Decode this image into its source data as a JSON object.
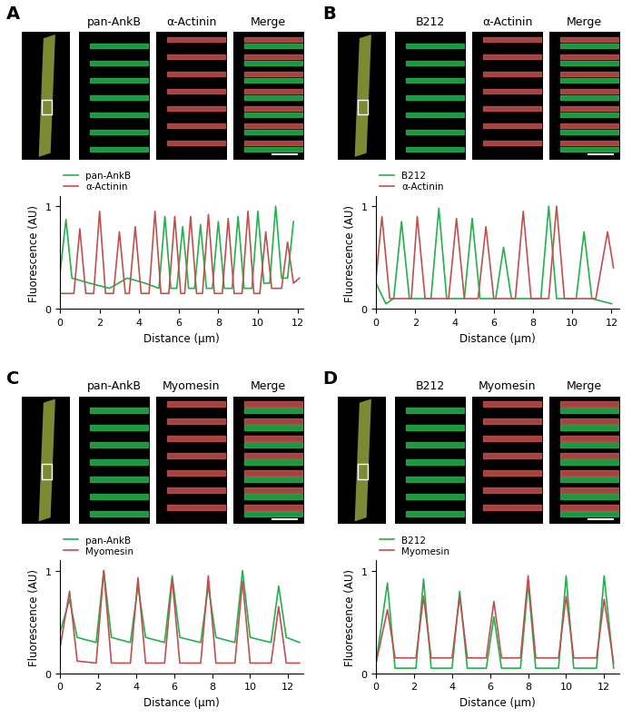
{
  "chart_data": [
    {
      "type": "line",
      "panel": "A",
      "image_labels": [
        "pan-AnkB",
        "α-Actinin",
        "Merge"
      ],
      "x_label": "Distance (μm)",
      "y_label": "Fluorescence (AU)",
      "xlim": [
        0,
        12.3
      ],
      "ylim": [
        0,
        1.1
      ],
      "xticks": [
        0,
        2,
        4,
        6,
        8,
        10,
        12
      ],
      "yticks": [
        0,
        1
      ],
      "legend": "upper left",
      "series": [
        {
          "name": "pan-AnkB",
          "color": "#22b14c",
          "x": [
            0,
            0.3,
            0.6,
            1.5,
            2.5,
            3.4,
            4.3,
            5.0,
            5.3,
            5.6,
            5.9,
            6.2,
            6.5,
            6.8,
            7.1,
            7.4,
            7.7,
            8.0,
            8.3,
            8.7,
            9.0,
            9.3,
            9.7,
            10.0,
            10.3,
            10.6,
            10.9,
            11.2,
            11.5,
            11.8
          ],
          "values": [
            0.35,
            0.87,
            0.3,
            0.25,
            0.2,
            0.3,
            0.25,
            0.2,
            0.9,
            0.2,
            0.2,
            0.8,
            0.2,
            0.2,
            0.82,
            0.2,
            0.2,
            0.85,
            0.2,
            0.2,
            0.9,
            0.2,
            0.2,
            0.95,
            0.25,
            0.25,
            1.0,
            0.3,
            0.3,
            0.85
          ]
        },
        {
          "name": "α-Actinin",
          "color": "#c0504d",
          "x": [
            0,
            0.7,
            1.0,
            1.3,
            1.7,
            2.0,
            2.3,
            2.7,
            3.0,
            3.3,
            3.5,
            3.8,
            4.1,
            4.5,
            4.8,
            5.1,
            5.5,
            5.8,
            6.1,
            6.3,
            6.6,
            6.9,
            7.2,
            7.5,
            7.8,
            8.2,
            8.5,
            8.8,
            9.2,
            9.5,
            9.8,
            10.1,
            10.4,
            10.7,
            11.2,
            11.5,
            11.8,
            12.1
          ],
          "values": [
            0.15,
            0.15,
            0.78,
            0.15,
            0.15,
            0.95,
            0.15,
            0.15,
            0.75,
            0.15,
            0.15,
            0.8,
            0.15,
            0.15,
            0.95,
            0.15,
            0.15,
            0.9,
            0.15,
            0.15,
            0.9,
            0.15,
            0.15,
            0.92,
            0.15,
            0.15,
            0.88,
            0.15,
            0.15,
            0.95,
            0.15,
            0.15,
            0.75,
            0.2,
            0.2,
            0.65,
            0.25,
            0.3
          ]
        }
      ]
    },
    {
      "type": "line",
      "panel": "B",
      "image_labels": [
        "B212",
        "α-Actinin",
        "Merge"
      ],
      "x_label": "Distance (μm)",
      "y_label": "Fluorescence (AU)",
      "xlim": [
        0,
        12.4
      ],
      "ylim": [
        0,
        1.1
      ],
      "xticks": [
        0,
        2,
        4,
        6,
        8,
        10,
        12
      ],
      "yticks": [
        0,
        1
      ],
      "legend": "upper left",
      "series": [
        {
          "name": "B212",
          "color": "#22b14c",
          "x": [
            0,
            0.5,
            0.9,
            1.3,
            1.7,
            2.8,
            3.2,
            3.6,
            4.5,
            4.9,
            5.3,
            6.1,
            6.5,
            6.9,
            8.4,
            8.8,
            9.2,
            10.2,
            10.6,
            11.0,
            12.0
          ],
          "values": [
            0.25,
            0.05,
            0.1,
            0.85,
            0.1,
            0.1,
            0.98,
            0.1,
            0.1,
            0.88,
            0.1,
            0.1,
            0.6,
            0.1,
            0.1,
            1.0,
            0.1,
            0.1,
            0.75,
            0.1,
            0.05
          ]
        },
        {
          "name": "α-Actinin",
          "color": "#c0504d",
          "x": [
            0,
            0.3,
            0.7,
            1.8,
            2.1,
            2.5,
            3.7,
            4.1,
            4.5,
            5.2,
            5.6,
            6.0,
            7.1,
            7.5,
            7.9,
            8.8,
            9.2,
            9.6,
            11.2,
            11.8,
            12.1
          ],
          "values": [
            0.3,
            0.9,
            0.1,
            0.1,
            0.9,
            0.1,
            0.1,
            0.88,
            0.1,
            0.1,
            0.8,
            0.1,
            0.1,
            0.95,
            0.1,
            0.1,
            1.0,
            0.1,
            0.1,
            0.75,
            0.4
          ]
        }
      ]
    },
    {
      "type": "line",
      "panel": "C",
      "image_labels": [
        "pan-AnkB",
        "Myomesin",
        "Merge"
      ],
      "x_label": "Distance (μm)",
      "y_label": "Fluorescence (AU)",
      "xlim": [
        0,
        12.8
      ],
      "ylim": [
        0,
        1.1
      ],
      "xticks": [
        0,
        2,
        4,
        6,
        8,
        10,
        12
      ],
      "yticks": [
        0,
        1
      ],
      "legend": "upper left",
      "series": [
        {
          "name": "pan-AnkB",
          "color": "#22b14c",
          "x": [
            0,
            0.5,
            0.9,
            1.9,
            2.3,
            2.7,
            3.7,
            4.1,
            4.5,
            5.5,
            5.9,
            6.3,
            7.4,
            7.8,
            8.2,
            9.2,
            9.6,
            10.0,
            11.1,
            11.5,
            11.9,
            12.6
          ],
          "values": [
            0.4,
            0.72,
            0.35,
            0.3,
            1.0,
            0.35,
            0.3,
            0.85,
            0.35,
            0.3,
            0.95,
            0.35,
            0.3,
            0.85,
            0.35,
            0.3,
            1.0,
            0.35,
            0.3,
            0.85,
            0.35,
            0.3
          ]
        },
        {
          "name": "Myomesin",
          "color": "#c0504d",
          "x": [
            0,
            0.5,
            0.9,
            1.9,
            2.3,
            2.7,
            3.7,
            4.1,
            4.5,
            5.5,
            5.9,
            6.3,
            7.4,
            7.8,
            8.2,
            9.2,
            9.6,
            10.0,
            11.1,
            11.5,
            11.9,
            12.6
          ],
          "values": [
            0.25,
            0.8,
            0.12,
            0.1,
            1.0,
            0.1,
            0.1,
            0.93,
            0.1,
            0.1,
            0.92,
            0.1,
            0.1,
            0.95,
            0.1,
            0.1,
            0.9,
            0.1,
            0.1,
            0.65,
            0.1,
            0.1
          ]
        }
      ]
    },
    {
      "type": "line",
      "panel": "D",
      "image_labels": [
        "B212",
        "Myomesin",
        "Merge"
      ],
      "x_label": "Distance (μm)",
      "y_label": "Fluorescence (AU)",
      "xlim": [
        0,
        12.8
      ],
      "ylim": [
        0,
        1.1
      ],
      "xticks": [
        0,
        2,
        4,
        6,
        8,
        10,
        12
      ],
      "yticks": [
        0,
        1
      ],
      "legend": "upper left",
      "series": [
        {
          "name": "B212",
          "color": "#22b14c",
          "x": [
            0,
            0.6,
            1.0,
            2.1,
            2.5,
            2.9,
            4.0,
            4.4,
            4.8,
            5.8,
            6.2,
            6.6,
            7.6,
            8.0,
            8.4,
            9.6,
            10.0,
            10.4,
            11.6,
            12.0,
            12.5
          ],
          "values": [
            0.1,
            0.88,
            0.05,
            0.05,
            0.92,
            0.05,
            0.05,
            0.8,
            0.05,
            0.05,
            0.55,
            0.05,
            0.05,
            0.88,
            0.05,
            0.05,
            0.95,
            0.05,
            0.05,
            0.95,
            0.05
          ]
        },
        {
          "name": "Myomesin",
          "color": "#c0504d",
          "x": [
            0,
            0.6,
            1.0,
            2.1,
            2.5,
            2.9,
            4.0,
            4.4,
            4.8,
            5.8,
            6.2,
            6.6,
            7.6,
            8.0,
            8.4,
            9.6,
            10.0,
            10.4,
            11.6,
            12.0,
            12.5
          ],
          "values": [
            0.1,
            0.62,
            0.15,
            0.15,
            0.75,
            0.15,
            0.15,
            0.75,
            0.15,
            0.15,
            0.7,
            0.15,
            0.15,
            0.95,
            0.15,
            0.15,
            0.75,
            0.15,
            0.15,
            0.72,
            0.1
          ]
        }
      ]
    }
  ]
}
